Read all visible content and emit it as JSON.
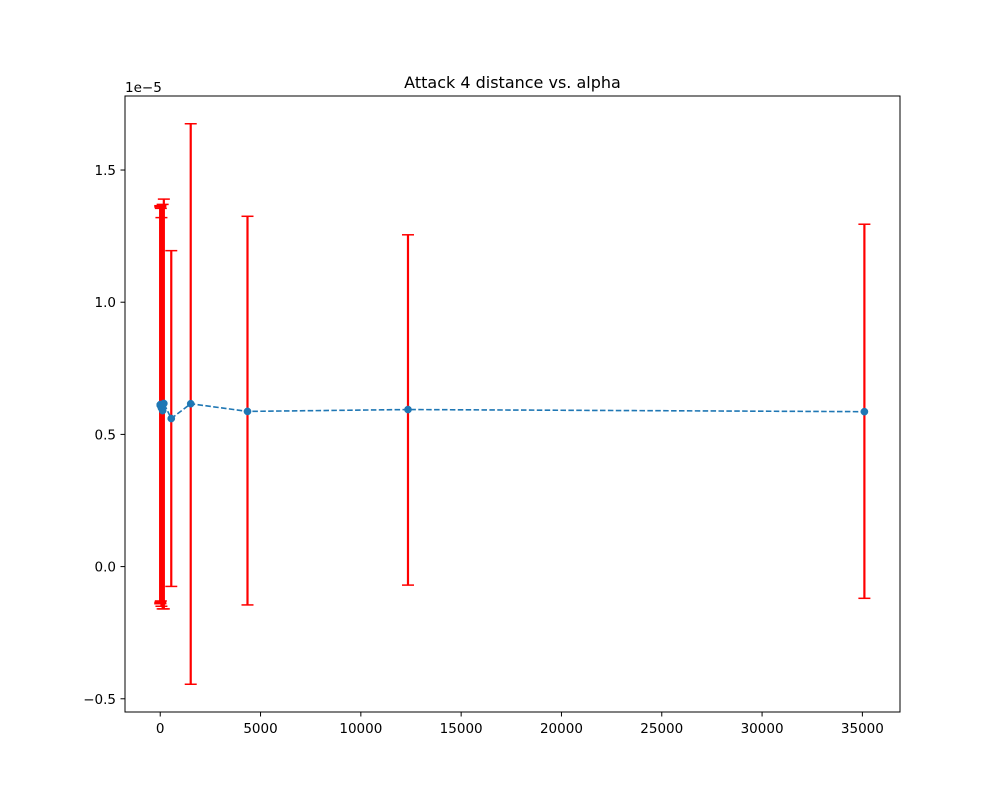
{
  "chart_data": {
    "type": "line",
    "title": "Attack 4 distance vs. alpha",
    "xlabel": "",
    "ylabel": "",
    "y_offset_label": "1e−5",
    "xlim": [
      -1756,
      36875
    ],
    "ylim": [
      -0.55,
      1.78
    ],
    "grid": false,
    "x_ticks": [
      0,
      5000,
      10000,
      15000,
      20000,
      25000,
      30000,
      35000
    ],
    "x_tick_labels": [
      "0",
      "5000",
      "10000",
      "15000",
      "20000",
      "25000",
      "30000",
      "35000"
    ],
    "y_ticks": [
      -0.5,
      0.0,
      0.5,
      1.0,
      1.5
    ],
    "y_tick_labels": [
      "−0.5",
      "0.0",
      "0.5",
      "1.0",
      "1.5"
    ],
    "series": [
      {
        "line_color": "#1f77b4",
        "line_style": "dashed",
        "marker": "circle",
        "error_color": "#ff0000",
        "points": [
          {
            "x": 1,
            "y": 0.612,
            "lower": -0.14,
            "upper": 1.365
          },
          {
            "x": 3,
            "y": 0.61,
            "lower": -0.135,
            "upper": 1.36
          },
          {
            "x": 10,
            "y": 0.613,
            "lower": -0.14,
            "upper": 1.365
          },
          {
            "x": 30,
            "y": 0.609,
            "lower": -0.13,
            "upper": 1.355
          },
          {
            "x": 60,
            "y": 0.6,
            "lower": -0.15,
            "upper": 1.32
          },
          {
            "x": 120,
            "y": 0.59,
            "lower": -0.16,
            "upper": 1.37
          },
          {
            "x": 180,
            "y": 0.617,
            "lower": -0.16,
            "upper": 1.39
          },
          {
            "x": 550,
            "y": 0.56,
            "lower": -0.075,
            "upper": 1.195
          },
          {
            "x": 1520,
            "y": 0.616,
            "lower": -0.445,
            "upper": 1.675
          },
          {
            "x": 4350,
            "y": 0.587,
            "lower": -0.145,
            "upper": 1.325
          },
          {
            "x": 12350,
            "y": 0.594,
            "lower": -0.07,
            "upper": 1.255
          },
          {
            "x": 35100,
            "y": 0.586,
            "lower": -0.12,
            "upper": 1.295
          }
        ]
      }
    ]
  }
}
